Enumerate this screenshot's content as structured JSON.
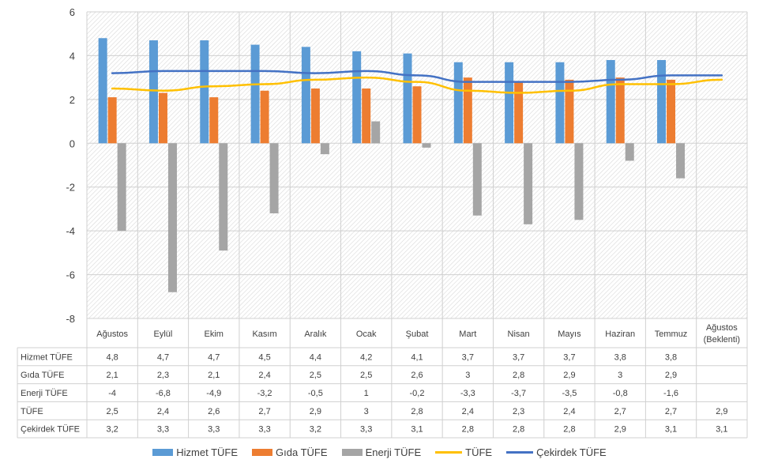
{
  "chart_data": {
    "type": "bar",
    "categories": [
      "Ağustos",
      "Eylül",
      "Ekim",
      "Kasım",
      "Aralık",
      "Ocak",
      "Şubat",
      "Mart",
      "Nisan",
      "Mayıs",
      "Haziran",
      "Temmuz",
      "Ağustos (Beklenti)"
    ],
    "category_lines": [
      [
        "Ağustos"
      ],
      [
        "Eylül"
      ],
      [
        "Ekim"
      ],
      [
        "Kasım"
      ],
      [
        "Aralık"
      ],
      [
        "Ocak"
      ],
      [
        "Şubat"
      ],
      [
        "Mart"
      ],
      [
        "Nisan"
      ],
      [
        "Mayıs"
      ],
      [
        "Haziran"
      ],
      [
        "Temmuz"
      ],
      [
        "Ağustos",
        "(Beklenti)"
      ]
    ],
    "ylim": [
      -8,
      6
    ],
    "yticks": [
      6,
      4,
      2,
      0,
      -2,
      -4,
      -6,
      -8
    ],
    "grid": true,
    "legend_position": "bottom",
    "series": [
      {
        "name": "Hizmet TÜFE",
        "kind": "bar",
        "color": "#5B9BD5",
        "values": [
          4.8,
          4.7,
          4.7,
          4.5,
          4.4,
          4.2,
          4.1,
          3.7,
          3.7,
          3.7,
          3.8,
          3.8,
          null
        ],
        "labels": [
          "4,8",
          "4,7",
          "4,7",
          "4,5",
          "4,4",
          "4,2",
          "4,1",
          "3,7",
          "3,7",
          "3,7",
          "3,8",
          "3,8",
          ""
        ]
      },
      {
        "name": "Gıda TÜFE",
        "kind": "bar",
        "color": "#ED7D31",
        "values": [
          2.1,
          2.3,
          2.1,
          2.4,
          2.5,
          2.5,
          2.6,
          3,
          2.8,
          2.9,
          3,
          2.9,
          null
        ],
        "labels": [
          "2,1",
          "2,3",
          "2,1",
          "2,4",
          "2,5",
          "2,5",
          "2,6",
          "3",
          "2,8",
          "2,9",
          "3",
          "2,9",
          ""
        ]
      },
      {
        "name": "Enerji TÜFE",
        "kind": "bar",
        "color": "#A5A5A5",
        "values": [
          -4,
          -6.8,
          -4.9,
          -3.2,
          -0.5,
          1,
          -0.2,
          -3.3,
          -3.7,
          -3.5,
          -0.8,
          -1.6,
          null
        ],
        "labels": [
          "-4",
          "-6,8",
          "-4,9",
          "-3,2",
          "-0,5",
          "1",
          "-0,2",
          "-3,3",
          "-3,7",
          "-3,5",
          "-0,8",
          "-1,6",
          ""
        ]
      },
      {
        "name": "TÜFE",
        "kind": "line",
        "color": "#FFC000",
        "values": [
          2.5,
          2.4,
          2.6,
          2.7,
          2.9,
          3,
          2.8,
          2.4,
          2.3,
          2.4,
          2.7,
          2.7,
          2.9
        ],
        "labels": [
          "2,5",
          "2,4",
          "2,6",
          "2,7",
          "2,9",
          "3",
          "2,8",
          "2,4",
          "2,3",
          "2,4",
          "2,7",
          "2,7",
          "2,9"
        ]
      },
      {
        "name": "Çekirdek TÜFE",
        "kind": "line",
        "color": "#4472C4",
        "values": [
          3.2,
          3.3,
          3.3,
          3.3,
          3.2,
          3.3,
          3.1,
          2.8,
          2.8,
          2.8,
          2.9,
          3.1,
          3.1
        ],
        "labels": [
          "3,2",
          "3,3",
          "3,3",
          "3,3",
          "3,2",
          "3,3",
          "3,1",
          "2,8",
          "2,8",
          "2,8",
          "2,9",
          "3,1",
          "3,1"
        ]
      }
    ]
  }
}
